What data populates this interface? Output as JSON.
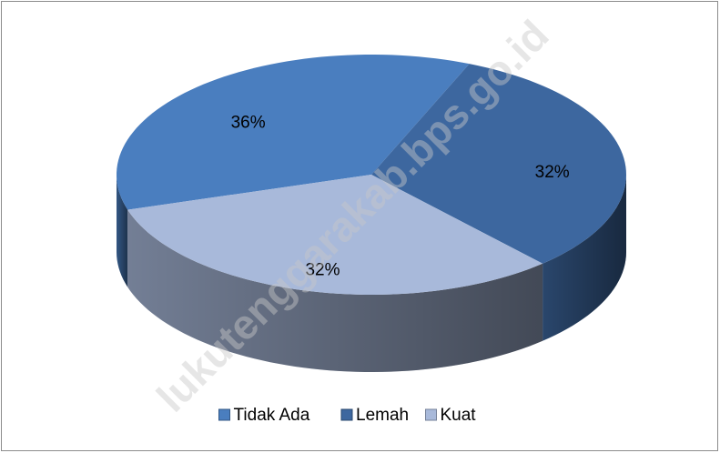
{
  "chart_data": {
    "type": "pie",
    "categories": [
      "Tidak Ada",
      "Lemah",
      "Kuat"
    ],
    "values": [
      36,
      32,
      32
    ],
    "value_labels": [
      "36%",
      "32%",
      "32%"
    ],
    "colors": [
      "#4a7ebf",
      "#3d679f",
      "#a8b9da"
    ],
    "legend": "bottom",
    "watermark": "lukutenggarakab.bps.go.id"
  }
}
